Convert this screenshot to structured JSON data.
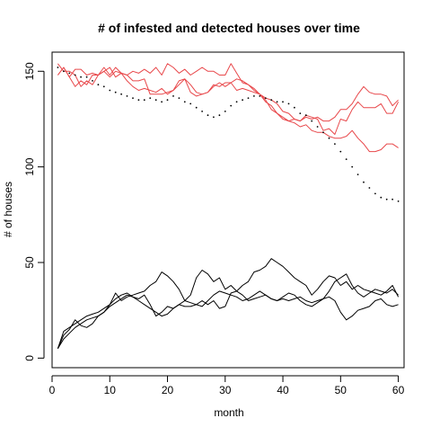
{
  "chart_data": {
    "type": "line",
    "title": "# of infested and detected houses over time",
    "xlabel": "month",
    "ylabel": "# of houses",
    "xlim": [
      0,
      61
    ],
    "ylim": [
      -5,
      160
    ],
    "xticks": [
      0,
      10,
      20,
      30,
      40,
      50,
      60
    ],
    "yticks": [
      0,
      50,
      100,
      150
    ],
    "grid": false,
    "legend": "none",
    "x": [
      1,
      2,
      3,
      4,
      5,
      6,
      7,
      8,
      9,
      10,
      11,
      12,
      13,
      14,
      15,
      16,
      17,
      18,
      19,
      20,
      21,
      22,
      23,
      24,
      25,
      26,
      27,
      28,
      29,
      30,
      31,
      32,
      33,
      34,
      35,
      36,
      37,
      38,
      39,
      40,
      41,
      42,
      43,
      44,
      45,
      46,
      47,
      48,
      49,
      50,
      51,
      52,
      53,
      54,
      55,
      56,
      57,
      58,
      59,
      60
    ],
    "series": [
      {
        "color": "#e8474a",
        "style": "solid",
        "values": [
          148,
          152,
          147,
          151,
          151,
          148,
          149,
          148,
          152,
          148,
          152,
          149,
          148,
          150,
          149,
          151,
          149,
          152,
          148,
          154,
          152,
          149,
          151,
          148,
          150,
          152,
          150,
          150,
          148,
          148,
          154,
          149,
          144,
          143,
          141,
          138,
          135,
          130,
          128,
          126,
          124,
          125,
          124,
          127,
          126,
          125,
          119,
          120,
          117,
          125,
          124,
          130,
          134,
          131,
          131,
          131,
          133,
          128,
          128,
          134
        ]
      },
      {
        "color": "#e8474a",
        "style": "solid",
        "values": [
          148,
          152,
          147,
          142,
          145,
          143,
          148,
          148,
          150,
          147,
          150,
          149,
          145,
          142,
          140,
          141,
          140,
          139,
          141,
          138,
          140,
          143,
          146,
          139,
          137,
          138,
          139,
          143,
          142,
          144,
          144,
          140,
          141,
          140,
          139,
          138,
          134,
          132,
          128,
          125,
          124,
          123,
          121,
          122,
          119,
          118,
          118,
          116,
          115,
          115,
          116,
          119,
          115,
          112,
          108,
          108,
          109,
          112,
          112,
          110
        ]
      },
      {
        "color": "#e8474a",
        "style": "solid",
        "values": [
          154,
          150,
          150,
          148,
          142,
          145,
          143,
          148,
          150,
          152,
          147,
          149,
          148,
          145,
          145,
          146,
          138,
          138,
          138,
          139,
          140,
          145,
          146,
          143,
          139,
          138,
          139,
          142,
          144,
          142,
          144,
          146,
          145,
          143,
          140,
          138,
          136,
          135,
          133,
          129,
          128,
          125,
          124,
          126,
          125,
          126,
          124,
          124,
          126,
          130,
          130,
          133,
          138,
          142,
          139,
          138,
          138,
          137,
          132,
          135
        ]
      },
      {
        "color": "#000000",
        "style": "dotted",
        "values": [
          152,
          150,
          149,
          148,
          147,
          147,
          145,
          143,
          142,
          140,
          139,
          138,
          137,
          136,
          135,
          135,
          136,
          135,
          134,
          135,
          137,
          136,
          134,
          133,
          131,
          129,
          127,
          126,
          127,
          129,
          132,
          134,
          135,
          136,
          137,
          137,
          136,
          135,
          134,
          134,
          133,
          131,
          128,
          127,
          124,
          121,
          118,
          115,
          112,
          108,
          104,
          100,
          96,
          92,
          89,
          86,
          84,
          83,
          83,
          82
        ]
      },
      {
        "color": "#000000",
        "style": "solid",
        "values": [
          5,
          12,
          15,
          20,
          17,
          16,
          18,
          22,
          24,
          28,
          34,
          30,
          32,
          33,
          34,
          35,
          38,
          40,
          45,
          43,
          40,
          36,
          30,
          33,
          42,
          46,
          44,
          40,
          42,
          36,
          38,
          35,
          38,
          40,
          45,
          46,
          48,
          52,
          50,
          48,
          45,
          42,
          40,
          38,
          33,
          36,
          40,
          43,
          42,
          38,
          40,
          36,
          38,
          36,
          35,
          34,
          33,
          35,
          38,
          32
        ]
      },
      {
        "color": "#000000",
        "style": "solid",
        "values": [
          5,
          14,
          16,
          18,
          20,
          22,
          23,
          24,
          26,
          28,
          31,
          33,
          34,
          32,
          30,
          28,
          26,
          24,
          22,
          23,
          26,
          28,
          30,
          29,
          28,
          27,
          30,
          33,
          35,
          34,
          33,
          32,
          30,
          31,
          33,
          35,
          33,
          31,
          30,
          32,
          34,
          33,
          30,
          28,
          27,
          29,
          31,
          35,
          40,
          42,
          44,
          38,
          34,
          32,
          34,
          36,
          35,
          34,
          36,
          33
        ]
      },
      {
        "color": "#000000",
        "style": "solid",
        "values": [
          5,
          10,
          13,
          16,
          18,
          20,
          21,
          22,
          24,
          27,
          29,
          31,
          33,
          32,
          31,
          33,
          28,
          22,
          24,
          27,
          26,
          28,
          27,
          27,
          28,
          30,
          28,
          30,
          26,
          27,
          34,
          35,
          33,
          30,
          31,
          32,
          33,
          31,
          30,
          31,
          30,
          31,
          32,
          30,
          29,
          30,
          31,
          32,
          30,
          24,
          20,
          22,
          25,
          26,
          27,
          30,
          31,
          28,
          27,
          28
        ]
      }
    ]
  }
}
